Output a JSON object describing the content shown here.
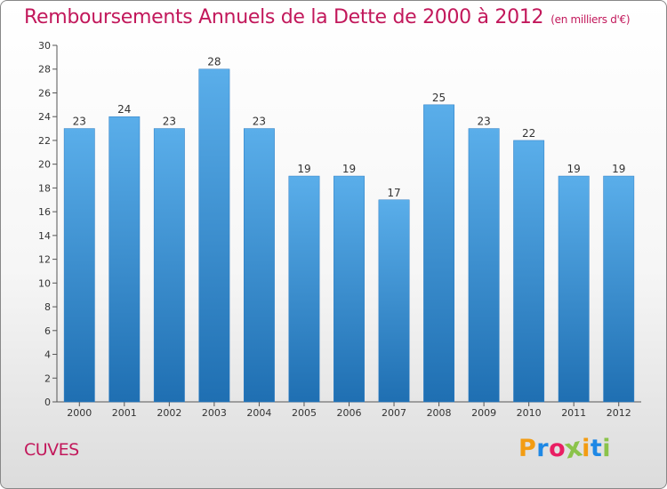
{
  "chart_data": {
    "type": "bar",
    "title": "Remboursements Annuels de la Dette de 2000 à 2012",
    "subtitle": "(en milliers d'€)",
    "categories": [
      "2000",
      "2001",
      "2002",
      "2003",
      "2004",
      "2005",
      "2006",
      "2007",
      "2008",
      "2009",
      "2010",
      "2011",
      "2012"
    ],
    "values": [
      23,
      24,
      23,
      28,
      23,
      19,
      19,
      17,
      25,
      23,
      22,
      19,
      19
    ],
    "ylim": [
      0,
      30
    ],
    "yticks": [
      0,
      2,
      4,
      6,
      8,
      10,
      12,
      14,
      16,
      18,
      20,
      22,
      24,
      26,
      28,
      30
    ],
    "grid": false,
    "bar_color": "#3a8fd4"
  },
  "footer": {
    "city": "CUVES",
    "logo_letters": [
      "P",
      "r",
      "o",
      "x",
      "i",
      "t",
      "i"
    ],
    "logo_colors": [
      "#f39c12",
      "#1e88e5",
      "#e91e63",
      "#8bc34a",
      "#f39c12",
      "#1e88e5",
      "#8bc34a"
    ]
  }
}
